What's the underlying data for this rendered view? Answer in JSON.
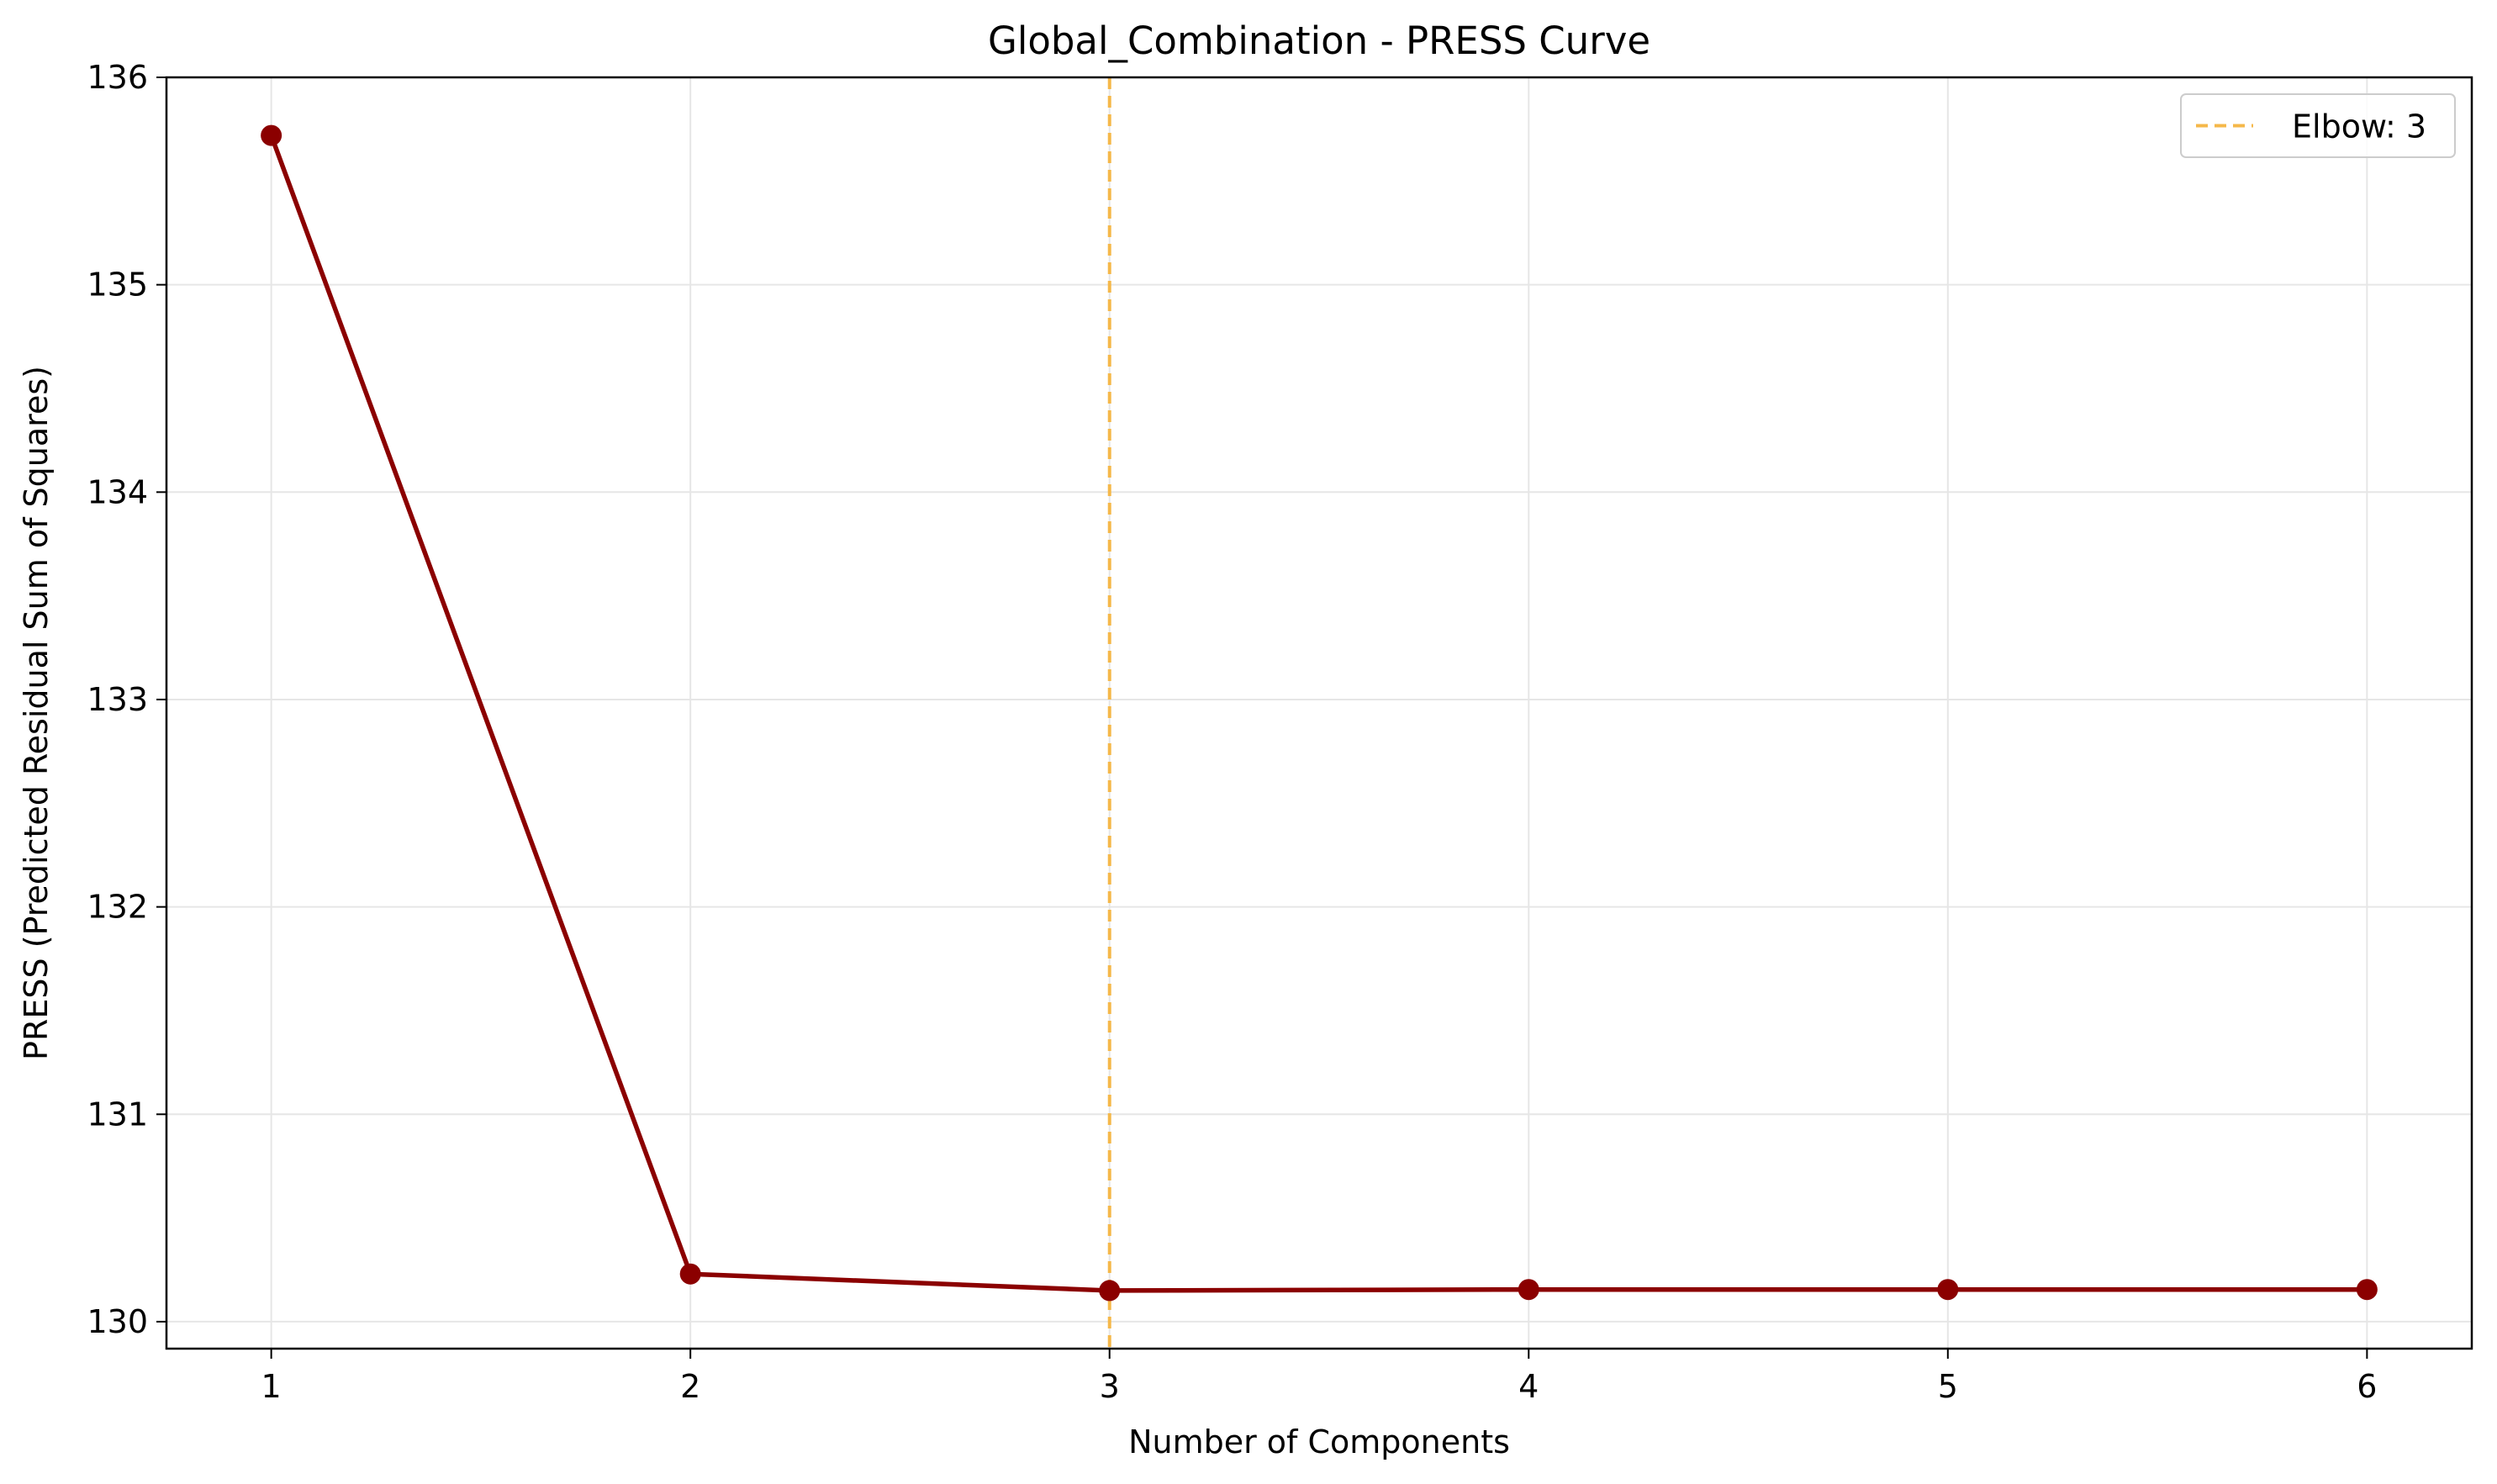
{
  "chart_data": {
    "type": "line",
    "title": "Global_Combination - PRESS Curve",
    "xlabel": "Number of Components",
    "ylabel": "PRESS (Predicted Residual Sum of Squares)",
    "xlim": [
      0.75,
      6.25
    ],
    "ylim": [
      129.87,
      136.0
    ],
    "x_ticks": [
      1,
      2,
      3,
      4,
      5,
      6
    ],
    "y_ticks": [
      130,
      131,
      132,
      133,
      134,
      135,
      136
    ],
    "grid": true,
    "legend_position": "top-right",
    "series": [
      {
        "x": [
          1,
          2,
          3,
          4,
          5,
          6
        ],
        "values": [
          135.72,
          130.23,
          130.15,
          130.155,
          130.155,
          130.155
        ],
        "color": "#8b0000",
        "marker": "circle"
      }
    ],
    "reference_lines": [
      {
        "orientation": "vertical",
        "x": 3,
        "label": "Elbow: 3",
        "color": "#f5b84a",
        "style": "dashed"
      }
    ]
  }
}
